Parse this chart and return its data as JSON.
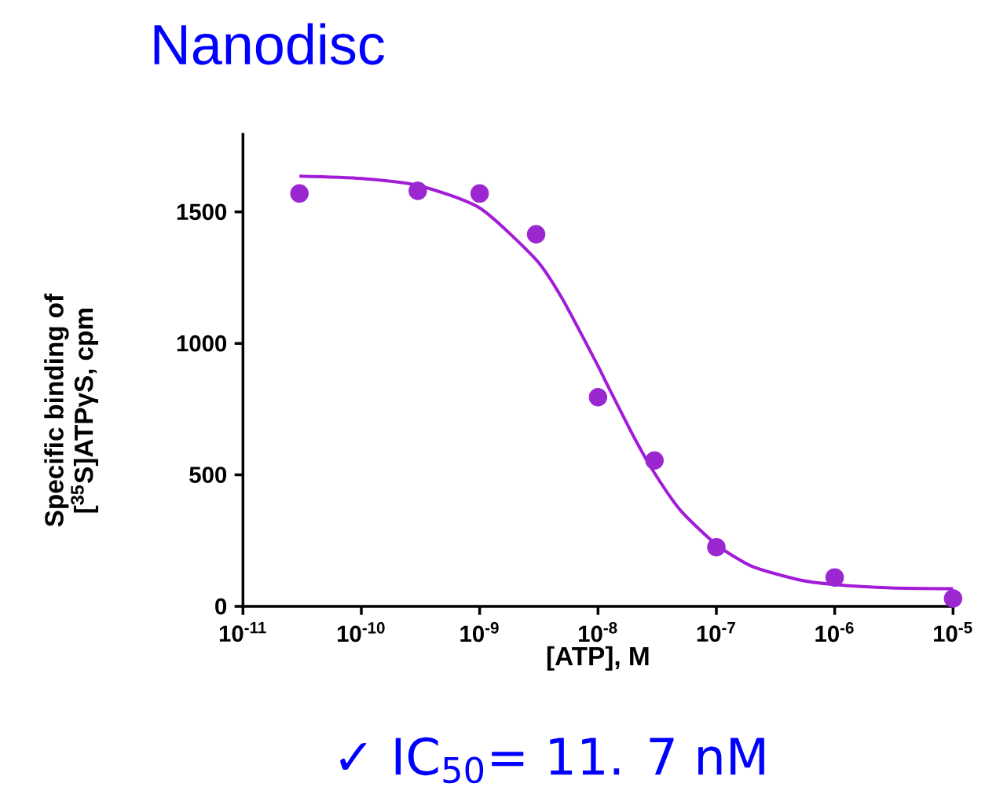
{
  "chart_data": {
    "type": "scatter",
    "title": "Nanodisc",
    "xlabel": "[ATP], M",
    "ylabel": "Specific binding of\n[$^{35}$S]ATPγS, cpm",
    "log": "x",
    "xlim": [
      1e-11,
      1e-05
    ],
    "xticks": [
      {
        "value": 1e-11,
        "label": "10$^{-11}$"
      },
      {
        "value": 1e-10,
        "label": "10$^{-10}$"
      },
      {
        "value": 1e-09,
        "label": "10$^{-9}$"
      },
      {
        "value": 1e-08,
        "label": "10$^{-8}$"
      },
      {
        "value": 1e-07,
        "label": "10$^{-7}$"
      },
      {
        "value": 1e-06,
        "label": "10$^{-6}$"
      },
      {
        "value": 1e-05,
        "label": "10$^{-5}$"
      }
    ],
    "ylim": [
      0,
      1800
    ],
    "yticks": [
      0,
      500,
      1000,
      1500
    ],
    "grid": false,
    "series": [
      {
        "color": "#9b27d1",
        "marker": "circle",
        "x": [
          3e-11,
          3e-10,
          1e-09,
          3e-09,
          1e-08,
          3e-08,
          1e-07,
          1e-06,
          1e-05
        ],
        "values": [
          1570,
          1580,
          1570,
          1415,
          795,
          555,
          225,
          110,
          30
        ]
      },
      {
        "type": "line",
        "color": "#a21cd8",
        "marker": "none",
        "line_style": "solid",
        "x": [
          3e-11,
          1e-10,
          3e-10,
          1e-09,
          3e-09,
          5e-09,
          1e-08,
          1.17e-08,
          2e-08,
          3e-08,
          5e-08,
          1e-07,
          2e-07,
          5e-07,
          1e-06,
          3e-06,
          1e-05
        ],
        "values": [
          1636,
          1627,
          1601,
          1515,
          1318,
          1169,
          914,
          852,
          646,
          507,
          364,
          235,
          152,
          101,
          83,
          70,
          67
        ]
      }
    ],
    "annotations": [
      "✓ IC$_{50}$=  11. 7 nM"
    ]
  }
}
